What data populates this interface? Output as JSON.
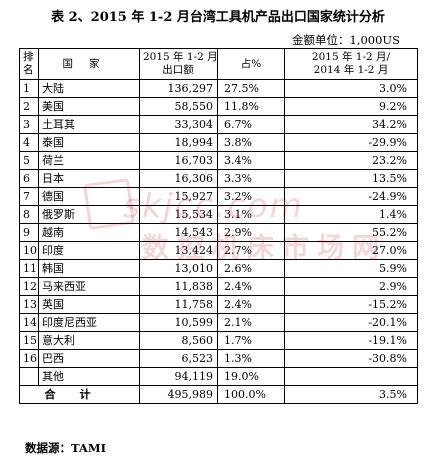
{
  "title": "表 2、2015 年 1-2 月台湾工具机产品出口国家统计分析",
  "unit": "金额单位：1,000US",
  "headers": {
    "rank": "排名",
    "country": "国家",
    "amount": "2015 年 1-2 月出口额",
    "share": "占%",
    "growth": "2015 年 1-2 月/ 2014 年 1-2 月"
  },
  "rows": [
    {
      "rank": "1",
      "country": "大陆",
      "amount": "136,297",
      "share": "27.5%",
      "growth": "3.0%"
    },
    {
      "rank": "2",
      "country": "美国",
      "amount": "58,550",
      "share": "11.8%",
      "growth": "9.2%"
    },
    {
      "rank": "3",
      "country": "土耳其",
      "amount": "33,304",
      "share": "6.7%",
      "growth": "34.2%"
    },
    {
      "rank": "4",
      "country": "泰国",
      "amount": "18,994",
      "share": "3.8%",
      "growth": "-29.9%"
    },
    {
      "rank": "5",
      "country": "荷兰",
      "amount": "16,703",
      "share": "3.4%",
      "growth": "23.2%"
    },
    {
      "rank": "6",
      "country": "日本",
      "amount": "16,306",
      "share": "3.3%",
      "growth": "13.5%"
    },
    {
      "rank": "7",
      "country": "德国",
      "amount": "15,927",
      "share": "3.2%",
      "growth": "-24.9%"
    },
    {
      "rank": "8",
      "country": "俄罗斯",
      "amount": "15,534",
      "share": "3.1%",
      "growth": "1.4%"
    },
    {
      "rank": "9",
      "country": "越南",
      "amount": "14,543",
      "share": "2.9%",
      "growth": "55.2%"
    },
    {
      "rank": "10",
      "country": "印度",
      "amount": "13,424",
      "share": "2.7%",
      "growth": "27.0%"
    },
    {
      "rank": "11",
      "country": "韩国",
      "amount": "13,010",
      "share": "2.6%",
      "growth": "5.9%"
    },
    {
      "rank": "12",
      "country": "马来西亚",
      "amount": "11,838",
      "share": "2.4%",
      "growth": "2.9%"
    },
    {
      "rank": "13",
      "country": "英国",
      "amount": "11,758",
      "share": "2.4%",
      "growth": "-15.2%"
    },
    {
      "rank": "14",
      "country": "印度尼西亚",
      "amount": "10,599",
      "share": "2.1%",
      "growth": "-20.1%"
    },
    {
      "rank": "15",
      "country": "意大利",
      "amount": "8,560",
      "share": "1.7%",
      "growth": "-19.1%"
    },
    {
      "rank": "16",
      "country": "巴西",
      "amount": "6,523",
      "share": "1.3%",
      "growth": "-30.8%"
    },
    {
      "rank": "",
      "country": "其他",
      "amount": "94,119",
      "share": "19.0%",
      "growth": ""
    }
  ],
  "total": {
    "label": "合计",
    "amount": "495,989",
    "share": "100.0%",
    "growth": "3.5%"
  },
  "source": "数据源：TAMI",
  "watermark": {
    "line1": "skjcc.com",
    "line2": "数控机床市场网",
    "logo": "机"
  },
  "colors": {
    "watermark": "#c00000",
    "text": "#000000",
    "border": "#000000"
  }
}
